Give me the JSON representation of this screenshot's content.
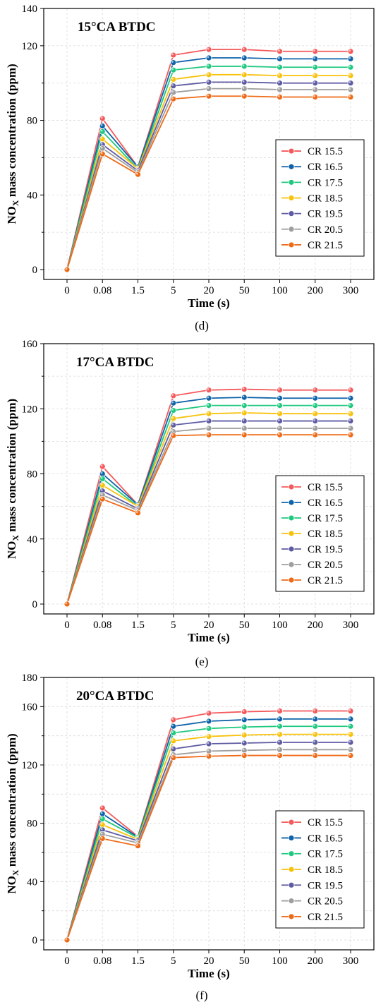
{
  "chart_data": [
    {
      "type": "line",
      "title": "15°CA BTDC",
      "xlabel": "Time (s)",
      "ylabel_main": "NO",
      "ylabel_sub": "X",
      "ylabel_rest": " mass concentration (ppm)",
      "panel_label": "(d)",
      "categories": [
        "0",
        "0.08",
        "1.5",
        "5",
        "20",
        "50",
        "100",
        "200",
        "300"
      ],
      "ylim": [
        0,
        140
      ],
      "yticks": [
        0,
        40,
        80,
        120
      ],
      "ytick_labels": [
        "0",
        "40",
        "80",
        "120",
        "140"
      ],
      "grid": true,
      "legend_position": "right",
      "series": [
        {
          "name": "CR 15.5",
          "color": "#f4595b",
          "values": [
            0,
            81,
            55,
            115,
            118,
            118,
            117,
            117,
            117
          ]
        },
        {
          "name": "CR 16.5",
          "color": "#0e62a9",
          "values": [
            0,
            77,
            55,
            111,
            113.5,
            113.5,
            113,
            113,
            113
          ]
        },
        {
          "name": "CR 17.5",
          "color": "#1ec97f",
          "values": [
            0,
            74,
            54,
            107,
            109,
            109,
            108.5,
            108.5,
            108.5
          ]
        },
        {
          "name": "CR 18.5",
          "color": "#f8c10a",
          "values": [
            0,
            70,
            54,
            102,
            104.5,
            104.5,
            104,
            104,
            104
          ]
        },
        {
          "name": "CR 19.5",
          "color": "#5d5ba3",
          "values": [
            0,
            67,
            53,
            98.5,
            100.5,
            100.5,
            100,
            100,
            100
          ]
        },
        {
          "name": "CR 20.5",
          "color": "#9e9e9e",
          "values": [
            0,
            65,
            52,
            95,
            97,
            97,
            96.5,
            96.5,
            96.5
          ]
        },
        {
          "name": "CR 21.5",
          "color": "#ef6a17",
          "values": [
            0,
            62,
            51,
            91.5,
            93,
            93,
            92.5,
            92.5,
            92.5
          ]
        }
      ]
    },
    {
      "type": "line",
      "title": "17°CA BTDC",
      "xlabel": "Time (s)",
      "ylabel_main": "NO",
      "ylabel_sub": "X",
      "ylabel_rest": " mass concentration (ppm)",
      "panel_label": "(e)",
      "categories": [
        "0",
        "0.08",
        "1.5",
        "5",
        "20",
        "50",
        "100",
        "200",
        "300"
      ],
      "ylim": [
        0,
        160
      ],
      "yticks": [
        0,
        40,
        80,
        120
      ],
      "ytick_labels": [
        "0",
        "40",
        "80",
        "120",
        "160"
      ],
      "grid": true,
      "legend_position": "right",
      "series": [
        {
          "name": "CR 15.5",
          "color": "#f4595b",
          "values": [
            0,
            84.5,
            61,
            128,
            131.5,
            132,
            131.5,
            131.5,
            131.5
          ]
        },
        {
          "name": "CR 16.5",
          "color": "#0e62a9",
          "values": [
            0,
            80,
            61,
            123.5,
            126.5,
            127,
            126.5,
            126.5,
            126.5
          ]
        },
        {
          "name": "CR 17.5",
          "color": "#1ec97f",
          "values": [
            0,
            77,
            60,
            119,
            122,
            122,
            122,
            122,
            122
          ]
        },
        {
          "name": "CR 18.5",
          "color": "#f8c10a",
          "values": [
            0,
            73,
            60,
            114,
            117,
            117.5,
            117,
            117,
            117
          ]
        },
        {
          "name": "CR 19.5",
          "color": "#5d5ba3",
          "values": [
            0,
            69.5,
            58.5,
            110,
            112.5,
            112.5,
            112.5,
            112.5,
            112.5
          ]
        },
        {
          "name": "CR 20.5",
          "color": "#9e9e9e",
          "values": [
            0,
            67,
            57.5,
            106,
            108,
            108,
            108,
            108,
            108
          ]
        },
        {
          "name": "CR 21.5",
          "color": "#ef6a17",
          "values": [
            0,
            64.5,
            56,
            103.5,
            104,
            104,
            104,
            104,
            104
          ]
        }
      ]
    },
    {
      "type": "line",
      "title": "20°CA BTDC",
      "xlabel": "Time (s)",
      "ylabel_main": "NO",
      "ylabel_sub": "X",
      "ylabel_rest": " mass concentration (ppm)",
      "panel_label": "(f)",
      "categories": [
        "0",
        "0.08",
        "1.5",
        "5",
        "20",
        "50",
        "100",
        "200",
        "300"
      ],
      "ylim": [
        0,
        180
      ],
      "yticks": [
        0,
        40,
        80,
        120,
        160
      ],
      "ytick_labels": [
        "0",
        "40",
        "80",
        "120",
        "160",
        "180"
      ],
      "grid": true,
      "legend_position": "right",
      "series": [
        {
          "name": "CR 15.5",
          "color": "#f4595b",
          "values": [
            0,
            90.5,
            71,
            151,
            155.5,
            156.5,
            157,
            157,
            157
          ]
        },
        {
          "name": "CR 16.5",
          "color": "#0e62a9",
          "values": [
            0,
            86.5,
            70.5,
            146.5,
            150,
            151,
            151.5,
            151.5,
            151.5
          ]
        },
        {
          "name": "CR 17.5",
          "color": "#1ec97f",
          "values": [
            0,
            83,
            70,
            142,
            145,
            146,
            146.5,
            146.5,
            146.5
          ]
        },
        {
          "name": "CR 18.5",
          "color": "#f8c10a",
          "values": [
            0,
            79,
            69,
            136.5,
            139.5,
            140.5,
            141,
            141,
            141
          ]
        },
        {
          "name": "CR 19.5",
          "color": "#5d5ba3",
          "values": [
            0,
            75.5,
            68,
            131,
            134.5,
            135,
            135.5,
            135.5,
            135.5
          ]
        },
        {
          "name": "CR 20.5",
          "color": "#9e9e9e",
          "values": [
            0,
            72.5,
            66.5,
            127,
            129.5,
            130,
            130.5,
            130.5,
            130.5
          ]
        },
        {
          "name": "CR 21.5",
          "color": "#ef6a17",
          "values": [
            0,
            69.5,
            64.5,
            125,
            126,
            126.5,
            126.5,
            126.5,
            126.5
          ]
        }
      ]
    }
  ]
}
